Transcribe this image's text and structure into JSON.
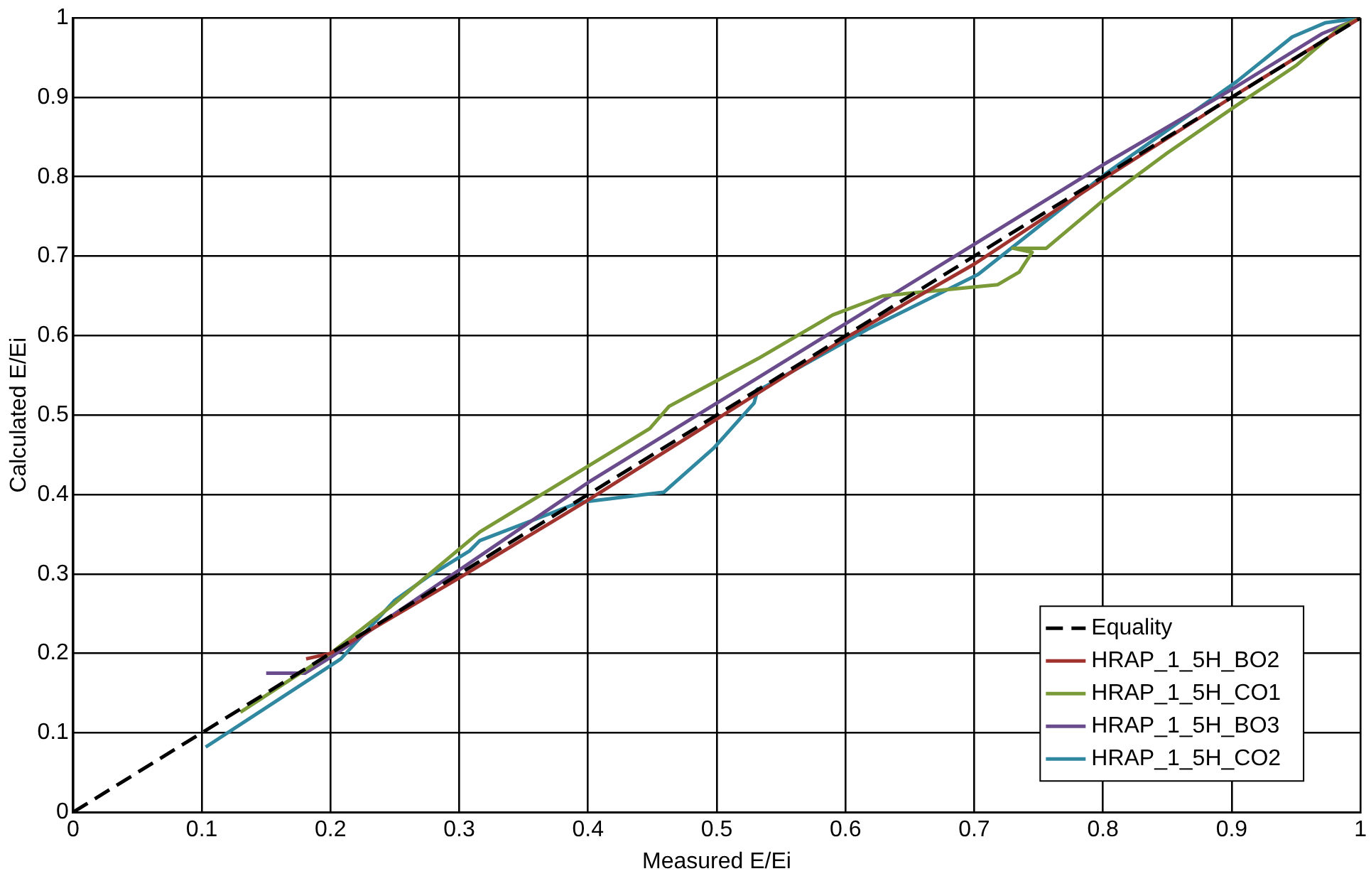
{
  "chart_data": {
    "type": "line",
    "xlabel": "Measured E/Ei",
    "ylabel": "Calculated E/Ei",
    "xlim": [
      0,
      1
    ],
    "ylim": [
      0,
      1
    ],
    "xticks": [
      0,
      0.1,
      0.2,
      0.3,
      0.4,
      0.5,
      0.6,
      0.7,
      0.8,
      0.9,
      1
    ],
    "yticks": [
      0,
      0.1,
      0.2,
      0.3,
      0.4,
      0.5,
      0.6,
      0.7,
      0.8,
      0.9,
      1
    ],
    "grid": true,
    "legend": "bottom right",
    "marker": "none",
    "series": [
      {
        "name": "Equality",
        "color": "#000000",
        "line_style": "dashed",
        "x": [
          0,
          1
        ],
        "values": [
          0,
          1
        ]
      },
      {
        "name": "HRAP_1_5H_BO2",
        "color": "#a0332e",
        "x": [
          0.181,
          0.2,
          0.3,
          0.4,
          0.5,
          0.6,
          0.7,
          0.8,
          0.9,
          1
        ],
        "values": [
          0.193,
          0.2,
          0.295,
          0.393,
          0.495,
          0.597,
          0.69,
          0.797,
          0.9,
          1
        ]
      },
      {
        "name": "HRAP_1_5H_CO1",
        "color": "#7a9a38",
        "x": [
          0.13,
          0.2,
          0.246,
          0.316,
          0.367,
          0.448,
          0.463,
          0.532,
          0.59,
          0.629,
          0.718,
          0.735,
          0.745,
          0.73,
          0.756,
          0.8,
          0.85,
          0.904,
          0.95,
          0.985,
          1
        ],
        "values": [
          0.126,
          0.2,
          0.258,
          0.353,
          0.403,
          0.483,
          0.511,
          0.571,
          0.626,
          0.65,
          0.664,
          0.68,
          0.705,
          0.71,
          0.71,
          0.77,
          0.83,
          0.89,
          0.94,
          0.989,
          1
        ]
      },
      {
        "name": "HRAP_1_5H_BO3",
        "color": "#6a4c8c",
        "x": [
          0.15,
          0.18,
          0.2,
          0.3,
          0.4,
          0.5,
          0.6,
          0.7,
          0.8,
          0.9,
          0.97,
          1
        ],
        "values": [
          0.175,
          0.175,
          0.195,
          0.305,
          0.415,
          0.515,
          0.615,
          0.715,
          0.815,
          0.91,
          0.98,
          1
        ]
      },
      {
        "name": "HRAP_1_5H_CO2",
        "color": "#3088a0",
        "x": [
          0.103,
          0.208,
          0.25,
          0.277,
          0.308,
          0.316,
          0.393,
          0.459,
          0.498,
          0.529,
          0.532,
          0.529,
          0.617,
          0.703,
          0.803,
          0.904,
          0.947,
          0.973,
          1
        ],
        "values": [
          0.082,
          0.193,
          0.267,
          0.298,
          0.329,
          0.342,
          0.39,
          0.403,
          0.459,
          0.515,
          0.533,
          0.528,
          0.608,
          0.677,
          0.805,
          0.92,
          0.976,
          0.994,
          1
        ]
      }
    ]
  }
}
